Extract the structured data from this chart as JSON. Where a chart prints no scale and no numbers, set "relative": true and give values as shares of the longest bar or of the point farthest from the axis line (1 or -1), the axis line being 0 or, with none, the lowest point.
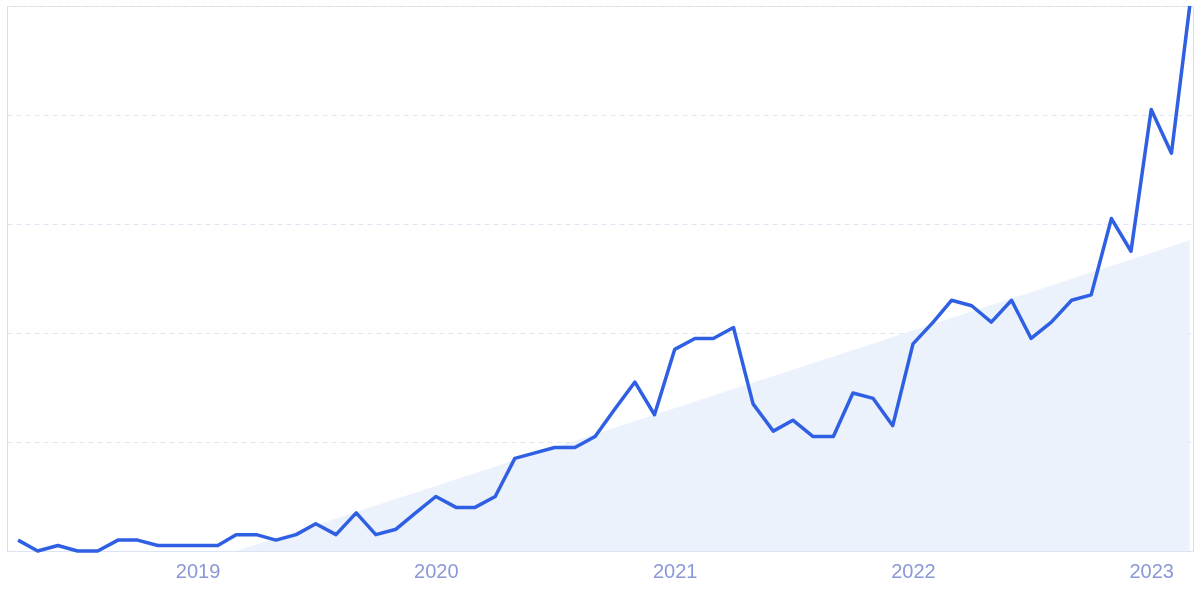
{
  "chart_data": {
    "type": "line",
    "relative": true,
    "grid": "y",
    "marker": "none",
    "line_style": "solid",
    "xlim": [
      "2018-03-15",
      "2023-03-06"
    ],
    "xticks": [
      "2019",
      "2020",
      "2021",
      "2022",
      "2023"
    ],
    "series": [
      {
        "type": "area",
        "color": "#eaf1fc",
        "x": [
          "2019-03",
          "2023-03"
        ],
        "values": [
          0,
          0.57
        ]
      },
      {
        "type": "line",
        "color": "#2f5fe3",
        "x": [
          "2018-04",
          "2018-05",
          "2018-06",
          "2018-07",
          "2018-08",
          "2018-09",
          "2018-10",
          "2018-11",
          "2018-12",
          "2019-01",
          "2019-02",
          "2019-03",
          "2019-04",
          "2019-05",
          "2019-06",
          "2019-07",
          "2019-08",
          "2019-09",
          "2019-10",
          "2019-11",
          "2019-12",
          "2020-01",
          "2020-02",
          "2020-03",
          "2020-04",
          "2020-05",
          "2020-06",
          "2020-07",
          "2020-08",
          "2020-09",
          "2020-10",
          "2020-11",
          "2020-12",
          "2021-01",
          "2021-02",
          "2021-03",
          "2021-04",
          "2021-05",
          "2021-06",
          "2021-07",
          "2021-08",
          "2021-09",
          "2021-10",
          "2021-11",
          "2021-12",
          "2022-01",
          "2022-02",
          "2022-03",
          "2022-04",
          "2022-05",
          "2022-06",
          "2022-07",
          "2022-08",
          "2022-09",
          "2022-10",
          "2022-11",
          "2022-12",
          "2023-01",
          "2023-02",
          "2023-03"
        ],
        "values": [
          0.02,
          0,
          0.01,
          0,
          0,
          0.02,
          0.02,
          0.01,
          0.01,
          0.01,
          0.01,
          0.03,
          0.03,
          0.02,
          0.03,
          0.05,
          0.03,
          0.07,
          0.03,
          0.04,
          0.07,
          0.1,
          0.08,
          0.08,
          0.1,
          0.17,
          0.18,
          0.19,
          0.19,
          0.21,
          0.26,
          0.31,
          0.25,
          0.37,
          0.39,
          0.39,
          0.41,
          0.27,
          0.22,
          0.24,
          0.21,
          0.21,
          0.29,
          0.28,
          0.23,
          0.38,
          0.42,
          0.46,
          0.45,
          0.42,
          0.46,
          0.39,
          0.42,
          0.46,
          0.47,
          0.61,
          0.55,
          0.81,
          0.73,
          1
        ]
      }
    ]
  }
}
